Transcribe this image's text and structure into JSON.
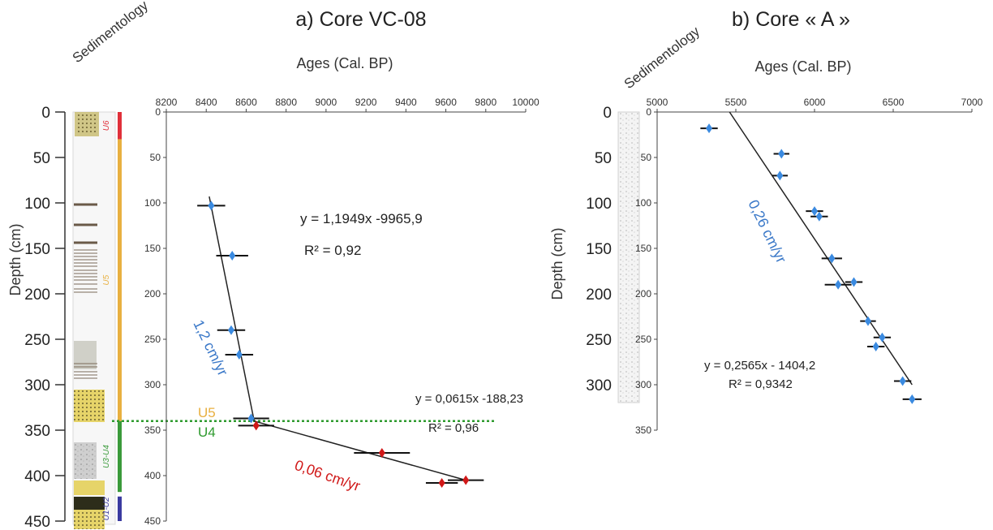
{
  "figure": {
    "core_a_title": "a) Core VC-08",
    "core_b_title": "b) Core « A »",
    "sedimentology_label": "Sedimentology",
    "depth_axis_label": "Depth (cm)",
    "age_axis_label": "Ages (Cal. BP)"
  },
  "colors": {
    "u6": "#e0303a",
    "u5": "#e8b040",
    "u4": "#3a9a3a",
    "u2": "#3a3aa0",
    "boundary": "#2e9a2e",
    "marker_blue": "#3a8ae0",
    "marker_red": "#d01818",
    "text_blue": "#3a78c8",
    "text_red": "#d01818"
  },
  "left_depth_ticks": [
    "0",
    "50",
    "100",
    "150",
    "200",
    "250",
    "300",
    "350",
    "400",
    "450"
  ],
  "unit_labels": [
    {
      "name": "U6",
      "from": 0,
      "to": 30,
      "color": "#e0303a"
    },
    {
      "name": "U5",
      "from": 30,
      "to": 340,
      "color": "#e8b040"
    },
    {
      "name": "U3-U4",
      "from": 340,
      "to": 418,
      "color": "#3a9a3a"
    },
    {
      "name": "U1-U2",
      "from": 423,
      "to": 450,
      "color": "#3a3aa0"
    }
  ],
  "boundary": {
    "depth": 340,
    "upper_label": "U5",
    "lower_label": "U4"
  },
  "chart_data": [
    {
      "type": "scatter",
      "title": "a) Core VC-08",
      "xlabel": "Ages (Cal. BP)",
      "ylabel": "Depth (cm)",
      "xlim": [
        8200,
        10000
      ],
      "ylim": [
        0,
        450
      ],
      "y_inverted": true,
      "x_ticks": [
        "8200",
        "8400",
        "8600",
        "8800",
        "9000",
        "9200",
        "9400",
        "9600",
        "9800",
        "10000"
      ],
      "y_ticks": [
        "0",
        "50",
        "100",
        "150",
        "200",
        "250",
        "300",
        "350",
        "400",
        "450"
      ],
      "series": [
        {
          "marker_color": "#3a8ae0",
          "points": [
            {
              "x": 8425,
              "y": 103,
              "err": 70
            },
            {
              "x": 8530,
              "y": 158,
              "err": 80
            },
            {
              "x": 8525,
              "y": 240,
              "err": 70
            },
            {
              "x": 8565,
              "y": 267,
              "err": 70
            },
            {
              "x": 8625,
              "y": 337,
              "err": 90
            }
          ],
          "fit": {
            "x": [
              8415,
              8640
            ],
            "y": [
              93,
              340
            ]
          }
        },
        {
          "marker_color": "#d01818",
          "points": [
            {
              "x": 8650,
              "y": 345,
              "err": 90
            },
            {
              "x": 9280,
              "y": 375,
              "err": 140
            },
            {
              "x": 9580,
              "y": 408,
              "err": 80
            },
            {
              "x": 9700,
              "y": 405,
              "err": 90
            }
          ],
          "fit": {
            "x": [
              8640,
              9700
            ],
            "y": [
              340,
              405
            ]
          }
        }
      ],
      "annotations": [
        {
          "text": "y = 1,1949x -9965,9",
          "color": "#222222"
        },
        {
          "text": "R² = 0,92",
          "color": "#222222"
        },
        {
          "text": "y = 0,0615x -188,23",
          "color": "#222222"
        },
        {
          "text": "R² = 0,96",
          "color": "#222222"
        },
        {
          "text": "1,2 cm/yr",
          "color": "#3a78c8"
        },
        {
          "text": "0,06 cm/yr",
          "color": "#d01818"
        }
      ]
    },
    {
      "type": "scatter",
      "title": "b) Core « A »",
      "xlabel": "Ages (Cal. BP)",
      "ylabel": "Depth (cm)",
      "xlim": [
        5000,
        7000
      ],
      "ylim": [
        0,
        350
      ],
      "y_inverted": true,
      "x_ticks": [
        "5000",
        "5500",
        "6000",
        "6500",
        "7000"
      ],
      "y_ticks": [
        "0",
        "50",
        "100",
        "150",
        "200",
        "250",
        "300",
        "350"
      ],
      "secondary_y_ticks": [
        "0",
        "50",
        "100",
        "150",
        "200",
        "250",
        "300"
      ],
      "series": [
        {
          "marker_color": "#3a8ae0",
          "points": [
            {
              "x": 5330,
              "y": 18,
              "err": 55
            },
            {
              "x": 5790,
              "y": 46,
              "err": 50
            },
            {
              "x": 5780,
              "y": 70,
              "err": 50
            },
            {
              "x": 6000,
              "y": 109,
              "err": 55
            },
            {
              "x": 6030,
              "y": 115,
              "err": 55
            },
            {
              "x": 6110,
              "y": 161,
              "err": 65
            },
            {
              "x": 6250,
              "y": 187,
              "err": 55
            },
            {
              "x": 6150,
              "y": 190,
              "err": 85
            },
            {
              "x": 6340,
              "y": 230,
              "err": 50
            },
            {
              "x": 6430,
              "y": 248,
              "err": 55
            },
            {
              "x": 6390,
              "y": 258,
              "err": 55
            },
            {
              "x": 6560,
              "y": 296,
              "err": 55
            },
            {
              "x": 6620,
              "y": 316,
              "err": 60
            }
          ],
          "fit": {
            "x": [
              5460,
              6620
            ],
            "y": [
              0,
              300
            ]
          }
        }
      ],
      "annotations": [
        {
          "text": "y = 0,2565x - 1404,2",
          "color": "#222222"
        },
        {
          "text": "R² = 0,9342",
          "color": "#222222"
        },
        {
          "text": "0,26 cm/yr",
          "color": "#3a78c8"
        }
      ]
    }
  ]
}
